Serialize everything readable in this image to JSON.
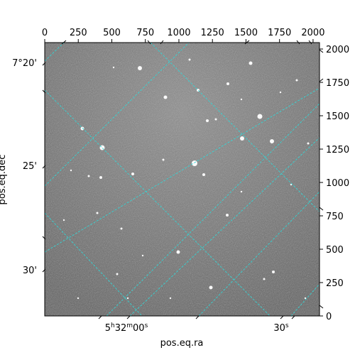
{
  "figure": {
    "xlabel": "pos.eq.ra",
    "ylabel": "pos.eq.dec",
    "top_ticks": [
      "0",
      "250",
      "500",
      "750",
      "1000",
      "1250",
      "1500",
      "1750",
      "2000"
    ],
    "right_ticks": [
      "0",
      "250",
      "500",
      "750",
      "1000",
      "1250",
      "1500",
      "1750",
      "2000"
    ],
    "left_ticks": [
      "7°20'",
      "25'",
      "30'"
    ],
    "ra_ticks": [
      {
        "h": "5",
        "m": "32",
        "s": "00",
        "label_type": "hms"
      },
      {
        "s": "30",
        "label_type": "s"
      }
    ],
    "pixel_range": [
      0,
      2048
    ],
    "grid_color": "#33d6d6",
    "frame_color": "#000000"
  },
  "image": {
    "type": "grayscale astronomical field",
    "background_level": 0.45,
    "noise": "high"
  }
}
